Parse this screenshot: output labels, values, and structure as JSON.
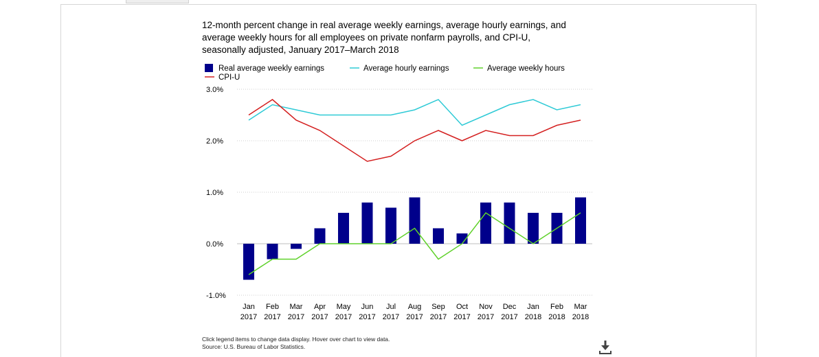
{
  "chart_data": {
    "type": "bar",
    "title": "12-month percent change in real average weekly earnings, average hourly earnings, and average weekly hours for all employees on private nonfarm payrolls, and CPI-U, seasonally adjusted, January 2017–March 2018",
    "title_lines": [
      "12-month percent change in real average weekly earnings, average hourly earnings, and",
      "average weekly hours for all employees on private nonfarm payrolls, and CPI-U,",
      "seasonally adjusted, January 2017–March 2018"
    ],
    "categories": [
      {
        "month": "Jan",
        "year": "2017"
      },
      {
        "month": "Feb",
        "year": "2017"
      },
      {
        "month": "Mar",
        "year": "2017"
      },
      {
        "month": "Apr",
        "year": "2017"
      },
      {
        "month": "May",
        "year": "2017"
      },
      {
        "month": "Jun",
        "year": "2017"
      },
      {
        "month": "Jul",
        "year": "2017"
      },
      {
        "month": "Aug",
        "year": "2017"
      },
      {
        "month": "Sep",
        "year": "2017"
      },
      {
        "month": "Oct",
        "year": "2017"
      },
      {
        "month": "Nov",
        "year": "2017"
      },
      {
        "month": "Dec",
        "year": "2017"
      },
      {
        "month": "Jan",
        "year": "2018"
      },
      {
        "month": "Feb",
        "year": "2018"
      },
      {
        "month": "Mar",
        "year": "2018"
      }
    ],
    "series": [
      {
        "name": "Real average weekly earnings",
        "kind": "bar",
        "color": "#00008b",
        "values": [
          -0.7,
          -0.3,
          -0.1,
          0.3,
          0.6,
          0.8,
          0.7,
          0.9,
          0.3,
          0.2,
          0.8,
          0.8,
          0.6,
          0.6,
          0.9
        ]
      },
      {
        "name": "Average hourly earnings",
        "kind": "line",
        "color": "#2ecad6",
        "values": [
          2.4,
          2.7,
          2.6,
          2.5,
          2.5,
          2.5,
          2.5,
          2.6,
          2.8,
          2.3,
          2.5,
          2.7,
          2.8,
          2.6,
          2.7
        ]
      },
      {
        "name": "Average weekly hours",
        "kind": "line",
        "color": "#5fd12a",
        "values": [
          -0.6,
          -0.3,
          -0.3,
          0.0,
          0.0,
          0.0,
          0.0,
          0.3,
          -0.3,
          0.0,
          0.6,
          0.3,
          0.0,
          0.3,
          0.6
        ]
      },
      {
        "name": "CPI-U",
        "kind": "line",
        "color": "#d42020",
        "values": [
          2.5,
          2.8,
          2.4,
          2.2,
          1.9,
          1.6,
          1.7,
          2.0,
          2.2,
          2.0,
          2.2,
          2.1,
          2.1,
          2.3,
          2.4
        ]
      }
    ],
    "yticks": [
      "3.0%",
      "2.0%",
      "1.0%",
      "0.0%",
      "-1.0%"
    ],
    "ytick_values": [
      3.0,
      2.0,
      1.0,
      0.0,
      -1.0
    ],
    "ylim": [
      -1.0,
      3.0
    ],
    "grid": true,
    "legend_position": "top-left"
  },
  "notes": {
    "line1": "Click legend items to change data display. Hover over chart to view data.",
    "line2": "Source: U.S. Bureau of Labor Statistics."
  }
}
